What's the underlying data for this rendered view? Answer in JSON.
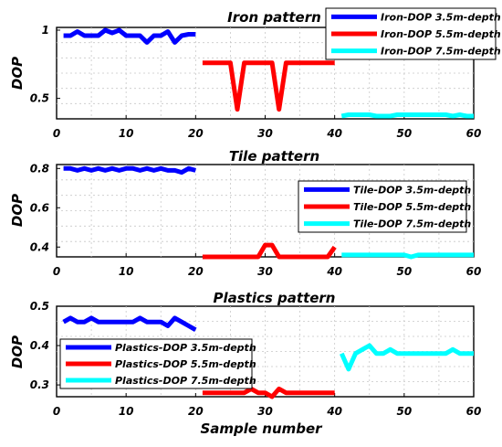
{
  "figure": {
    "xlabel": "Sample number"
  },
  "chart_data": [
    {
      "type": "line",
      "title": "Iron pattern",
      "xlabel": "",
      "ylabel": "DOP",
      "xlim": [
        0,
        60
      ],
      "ylim": [
        0.35,
        1.02
      ],
      "xticks": [
        0,
        10,
        20,
        30,
        40,
        50,
        60
      ],
      "yticks": [
        0.5,
        1
      ],
      "ytick_labels": [
        "0.5",
        "1"
      ],
      "grid": true,
      "legend_position": "top-right",
      "series": [
        {
          "name": "Iron-DOP 3.5m-depth",
          "color": "#0000ff",
          "x": [
            1,
            2,
            3,
            4,
            5,
            6,
            7,
            8,
            9,
            10,
            11,
            12,
            13,
            14,
            15,
            16,
            17,
            18,
            19,
            20
          ],
          "y": [
            0.96,
            0.96,
            0.99,
            0.96,
            0.96,
            0.96,
            1.0,
            0.98,
            1.0,
            0.96,
            0.96,
            0.96,
            0.91,
            0.96,
            0.96,
            0.99,
            0.91,
            0.96,
            0.97,
            0.97
          ]
        },
        {
          "name": "Iron-DOP 5.5m-depth",
          "color": "#ff0000",
          "x": [
            21,
            22,
            23,
            24,
            25,
            26,
            27,
            28,
            29,
            30,
            31,
            32,
            33,
            34,
            35,
            36,
            37,
            38,
            39,
            40
          ],
          "y": [
            0.76,
            0.76,
            0.76,
            0.76,
            0.76,
            0.42,
            0.76,
            0.76,
            0.76,
            0.76,
            0.76,
            0.42,
            0.76,
            0.76,
            0.76,
            0.76,
            0.76,
            0.76,
            0.76,
            0.76
          ]
        },
        {
          "name": "Iron-DOP 7.5m-depth",
          "color": "#00ffff",
          "x": [
            41,
            42,
            43,
            44,
            45,
            46,
            47,
            48,
            49,
            50,
            51,
            52,
            53,
            54,
            55,
            56,
            57,
            58,
            59,
            60
          ],
          "y": [
            0.37,
            0.38,
            0.38,
            0.38,
            0.38,
            0.37,
            0.37,
            0.37,
            0.38,
            0.38,
            0.38,
            0.38,
            0.38,
            0.38,
            0.38,
            0.38,
            0.37,
            0.38,
            0.37,
            0.37
          ]
        }
      ]
    },
    {
      "type": "line",
      "title": "Tile pattern",
      "xlabel": "",
      "ylabel": "DOP",
      "xlim": [
        0,
        60
      ],
      "ylim": [
        0.35,
        0.82
      ],
      "xticks": [
        0,
        10,
        20,
        30,
        40,
        50,
        60
      ],
      "yticks": [
        0.4,
        0.6,
        0.8
      ],
      "ytick_labels": [
        "0.4",
        "0.6",
        "0.8"
      ],
      "grid": true,
      "legend_position": "right",
      "series": [
        {
          "name": "Tile-DOP 3.5m-depth",
          "color": "#0000ff",
          "x": [
            1,
            2,
            3,
            4,
            5,
            6,
            7,
            8,
            9,
            10,
            11,
            12,
            13,
            14,
            15,
            16,
            17,
            18,
            19,
            20
          ],
          "y": [
            0.8,
            0.8,
            0.79,
            0.8,
            0.79,
            0.8,
            0.79,
            0.8,
            0.79,
            0.8,
            0.8,
            0.79,
            0.8,
            0.79,
            0.8,
            0.79,
            0.79,
            0.78,
            0.8,
            0.79
          ]
        },
        {
          "name": "Tile-DOP 5.5m-depth",
          "color": "#ff0000",
          "x": [
            21,
            22,
            23,
            24,
            25,
            26,
            27,
            28,
            29,
            30,
            31,
            32,
            33,
            34,
            35,
            36,
            37,
            38,
            39,
            40
          ],
          "y": [
            0.35,
            0.35,
            0.35,
            0.35,
            0.35,
            0.35,
            0.35,
            0.35,
            0.35,
            0.41,
            0.41,
            0.35,
            0.35,
            0.35,
            0.35,
            0.35,
            0.35,
            0.35,
            0.35,
            0.4
          ]
        },
        {
          "name": "Tile-DOP 7.5m-depth",
          "color": "#00ffff",
          "x": [
            41,
            42,
            43,
            44,
            45,
            46,
            47,
            48,
            49,
            50,
            51,
            52,
            53,
            54,
            55,
            56,
            57,
            58,
            59,
            60
          ],
          "y": [
            0.36,
            0.36,
            0.36,
            0.36,
            0.36,
            0.36,
            0.36,
            0.36,
            0.36,
            0.36,
            0.35,
            0.36,
            0.36,
            0.36,
            0.36,
            0.36,
            0.36,
            0.36,
            0.36,
            0.36
          ]
        }
      ]
    },
    {
      "type": "line",
      "title": "Plastics pattern",
      "xlabel": "Sample number",
      "ylabel": "DOP",
      "xlim": [
        0,
        60
      ],
      "ylim": [
        0.27,
        0.5
      ],
      "xticks": [
        0,
        10,
        20,
        30,
        40,
        50,
        60
      ],
      "yticks": [
        0.3,
        0.4,
        0.5
      ],
      "ytick_labels": [
        "0.3",
        "0.4",
        "0.5"
      ],
      "grid": true,
      "legend_position": "bottom-left",
      "series": [
        {
          "name": "Plastics-DOP 3.5m-depth",
          "color": "#0000ff",
          "x": [
            1,
            2,
            3,
            4,
            5,
            6,
            7,
            8,
            9,
            10,
            11,
            12,
            13,
            14,
            15,
            16,
            17,
            18,
            19,
            20
          ],
          "y": [
            0.46,
            0.47,
            0.46,
            0.46,
            0.47,
            0.46,
            0.46,
            0.46,
            0.46,
            0.46,
            0.46,
            0.47,
            0.46,
            0.46,
            0.46,
            0.45,
            0.47,
            0.46,
            0.45,
            0.44
          ]
        },
        {
          "name": "Plastics-DOP 5.5m-depth",
          "color": "#ff0000",
          "x": [
            21,
            22,
            23,
            24,
            25,
            26,
            27,
            28,
            29,
            30,
            31,
            32,
            33,
            34,
            35,
            36,
            37,
            38,
            39,
            40
          ],
          "y": [
            0.28,
            0.28,
            0.28,
            0.28,
            0.28,
            0.28,
            0.28,
            0.29,
            0.28,
            0.28,
            0.27,
            0.29,
            0.28,
            0.28,
            0.28,
            0.28,
            0.28,
            0.28,
            0.28,
            0.28
          ]
        },
        {
          "name": "Plastics-DOP 7.5m-depth",
          "color": "#00ffff",
          "x": [
            41,
            42,
            43,
            44,
            45,
            46,
            47,
            48,
            49,
            50,
            51,
            52,
            53,
            54,
            55,
            56,
            57,
            58,
            59,
            60
          ],
          "y": [
            0.38,
            0.34,
            0.38,
            0.39,
            0.4,
            0.38,
            0.38,
            0.39,
            0.38,
            0.38,
            0.38,
            0.38,
            0.38,
            0.38,
            0.38,
            0.38,
            0.39,
            0.38,
            0.38,
            0.38
          ]
        }
      ]
    }
  ]
}
